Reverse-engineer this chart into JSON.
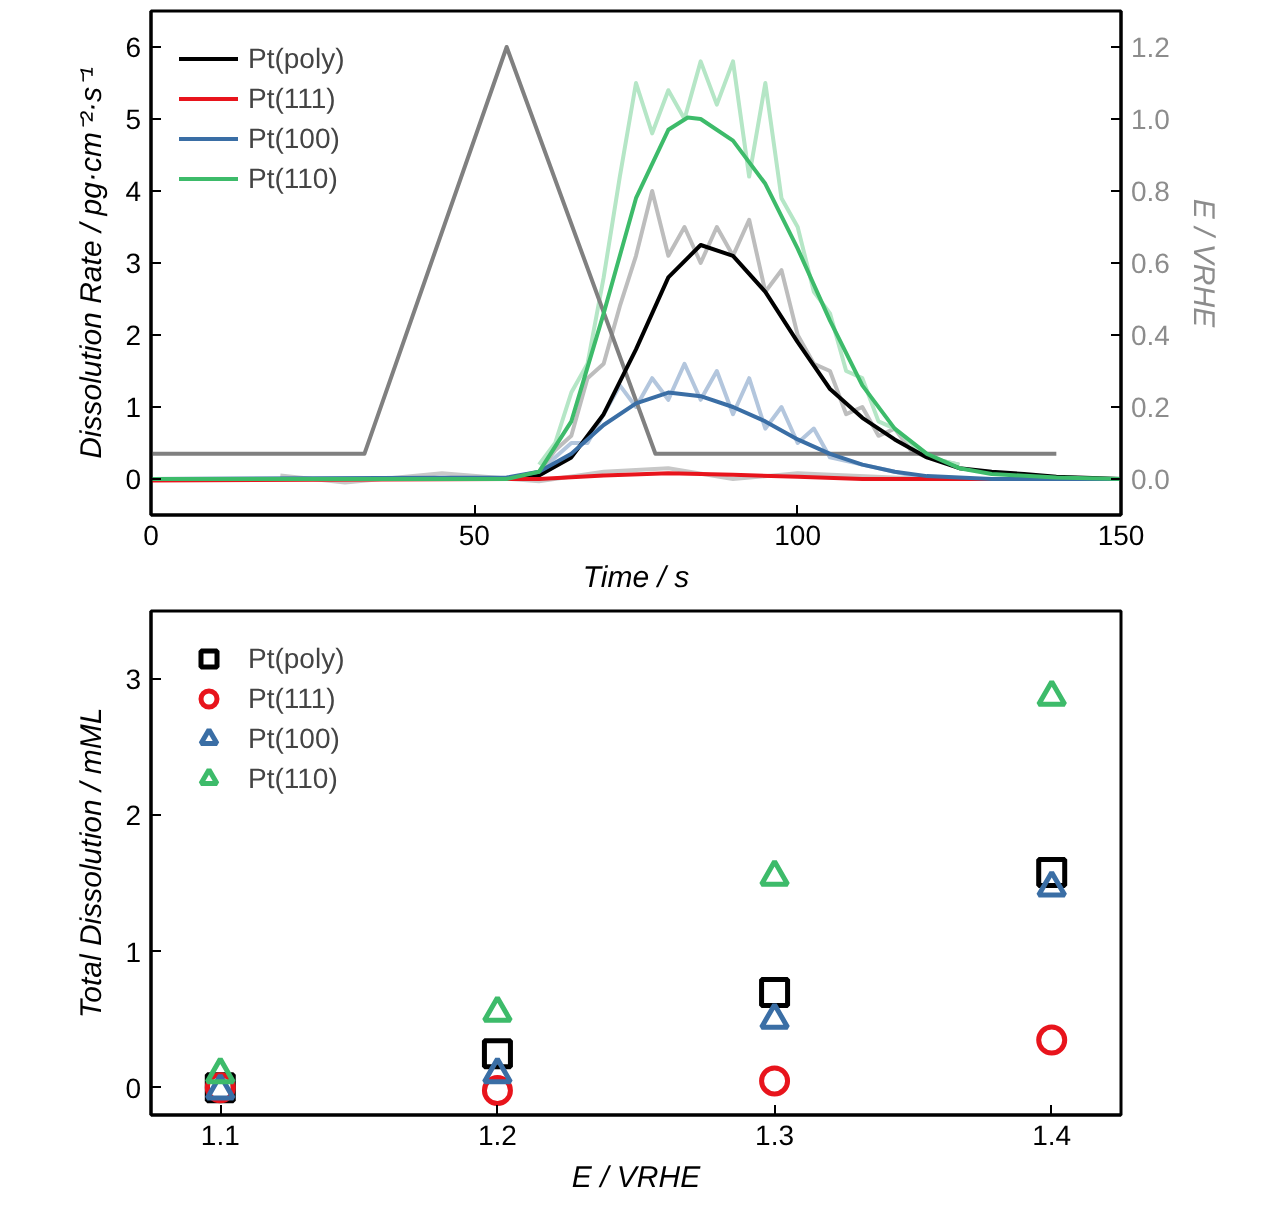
{
  "chart_data": [
    {
      "type": "line",
      "xlabel": "Time / s",
      "ylabel": "Dissolution Rate / pg·cm⁻²·s⁻¹",
      "y2label": "E / VRHE",
      "xlim": [
        0,
        150
      ],
      "xticks": [
        0,
        50,
        100,
        150
      ],
      "ylim": [
        -0.5,
        6.5
      ],
      "yticks": [
        0,
        1,
        2,
        3,
        4,
        5,
        6
      ],
      "y2lim": [
        -0.1,
        1.3
      ],
      "y2ticks": [
        {
          "value": 0,
          "label": "0.0"
        },
        0.2,
        0.4,
        0.6,
        0.8,
        {
          "value": 1,
          "label": "1.0"
        },
        1.2
      ],
      "grid": false,
      "legend": "top left",
      "line_style": "solid",
      "series": [
        {
          "color": "#c8c8c8",
          "x": [
            20,
            30,
            45,
            60,
            70,
            80,
            90,
            100,
            120,
            150
          ],
          "values": [
            0.05,
            -0.05,
            0.08,
            -0.03,
            0.1,
            0.15,
            0.0,
            0.08,
            0.0,
            0.0
          ]
        },
        {
          "color": "#b3c6dd",
          "x": [
            60,
            65,
            67.5,
            70,
            72.5,
            75,
            77.5,
            80,
            82.5,
            85,
            87.5,
            90,
            92.5,
            95,
            97.5,
            100,
            102.5,
            105,
            110,
            115,
            120
          ],
          "values": [
            0.1,
            0.5,
            0.5,
            0.9,
            1.3,
            1.0,
            1.4,
            1.1,
            1.6,
            1.1,
            1.5,
            0.9,
            1.4,
            0.7,
            1.0,
            0.5,
            0.7,
            0.3,
            0.2,
            0.1,
            0.0
          ]
        },
        {
          "color": "#bdbdbd",
          "x": [
            60,
            62.5,
            65,
            67.5,
            70,
            72.5,
            75,
            77.5,
            80,
            82.5,
            85,
            87.5,
            90,
            92.5,
            95,
            97.5,
            100,
            102.5,
            105,
            107.5,
            110,
            112.5,
            115,
            117.5,
            120,
            125
          ],
          "values": [
            0.1,
            0.4,
            0.6,
            1.4,
            1.6,
            2.4,
            3.1,
            4.0,
            3.1,
            3.5,
            3.0,
            3.5,
            3.1,
            3.6,
            2.6,
            2.9,
            2.0,
            1.6,
            1.5,
            0.9,
            1.0,
            0.6,
            0.7,
            0.4,
            0.3,
            0.2
          ]
        },
        {
          "color": "#b5e6c6",
          "x": [
            60,
            62.5,
            65,
            67.5,
            70,
            72.5,
            75,
            77.5,
            80,
            82.5,
            85,
            87.5,
            90,
            92.5,
            95,
            97.5,
            100,
            102.5,
            105,
            107.5,
            110,
            112.5,
            115,
            117.5,
            120,
            125
          ],
          "values": [
            0.2,
            0.5,
            1.2,
            1.6,
            2.8,
            4.2,
            5.5,
            4.8,
            5.4,
            5.0,
            5.8,
            5.2,
            5.8,
            4.2,
            5.5,
            3.9,
            3.5,
            2.6,
            2.3,
            1.5,
            1.4,
            0.8,
            0.7,
            0.5,
            0.3,
            0.2
          ]
        },
        {
          "color": "#808080",
          "axis": "y2",
          "x": [
            0,
            33,
            55,
            78,
            140
          ],
          "values": [
            0.07,
            0.07,
            1.2,
            0.07,
            0.07
          ]
        },
        {
          "name": "Pt(poly)",
          "color": "#000000",
          "x": [
            0,
            55,
            60,
            65,
            70,
            75,
            80,
            85,
            90,
            95,
            100,
            105,
            110,
            115,
            120,
            125,
            130,
            135,
            140,
            150
          ],
          "values": [
            0,
            0,
            0.05,
            0.3,
            0.9,
            1.8,
            2.8,
            3.25,
            3.1,
            2.6,
            1.9,
            1.25,
            0.85,
            0.55,
            0.3,
            0.15,
            0.1,
            0.07,
            0.03,
            0
          ]
        },
        {
          "name": "Pt(111)",
          "color": "#e8141c",
          "x": [
            0,
            60,
            70,
            80,
            90,
            100,
            110,
            150
          ],
          "values": [
            -0.02,
            0.0,
            0.05,
            0.08,
            0.06,
            0.03,
            0,
            0
          ]
        },
        {
          "name": "Pt(100)",
          "color": "#3a6ea5",
          "x": [
            0,
            55,
            60,
            65,
            70,
            75,
            80,
            85,
            90,
            95,
            100,
            105,
            110,
            115,
            120,
            130,
            150
          ],
          "values": [
            0,
            0.02,
            0.1,
            0.35,
            0.75,
            1.05,
            1.2,
            1.15,
            1.0,
            0.8,
            0.55,
            0.35,
            0.2,
            0.1,
            0.04,
            0,
            0
          ]
        },
        {
          "name": "Pt(110)",
          "color": "#3dbb6a",
          "x": [
            0,
            55,
            60,
            65,
            70,
            75,
            80,
            83,
            85,
            90,
            95,
            100,
            105,
            110,
            115,
            120,
            125,
            130,
            140,
            150
          ],
          "values": [
            0,
            0,
            0.1,
            0.8,
            2.3,
            3.9,
            4.85,
            5.02,
            5.0,
            4.7,
            4.1,
            3.2,
            2.2,
            1.3,
            0.7,
            0.35,
            0.15,
            0.07,
            0.02,
            0
          ]
        }
      ]
    },
    {
      "type": "scatter",
      "xlabel": "E / VRHE",
      "ylabel": "Total Dissolution / mML",
      "xlim": [
        1.075,
        1.425
      ],
      "xticks": [
        1.1,
        1.2,
        1.3,
        1.4
      ],
      "ylim": [
        -0.2,
        3.5
      ],
      "yticks": [
        0,
        1,
        2,
        3
      ],
      "grid": false,
      "legend": "top left",
      "series": [
        {
          "name": "Pt(poly)",
          "color": "#000000",
          "marker": "square",
          "x": [
            1.1,
            1.2,
            1.3,
            1.4
          ],
          "values": [
            0.0,
            0.25,
            0.7,
            1.58
          ]
        },
        {
          "name": "Pt(111)",
          "color": "#e8141c",
          "marker": "circle",
          "x": [
            1.1,
            1.2,
            1.3,
            1.4
          ],
          "values": [
            0.0,
            -0.02,
            0.05,
            0.35
          ]
        },
        {
          "name": "Pt(100)",
          "color": "#3a6ea5",
          "marker": "triangle",
          "x": [
            1.1,
            1.2,
            1.3,
            1.4
          ],
          "values": [
            -0.02,
            0.1,
            0.5,
            1.47
          ]
        },
        {
          "name": "Pt(110)",
          "color": "#3dbb6a",
          "marker": "triangle",
          "x": [
            1.1,
            1.2,
            1.3,
            1.4
          ],
          "values": [
            0.1,
            0.55,
            1.55,
            2.87
          ]
        }
      ]
    }
  ]
}
